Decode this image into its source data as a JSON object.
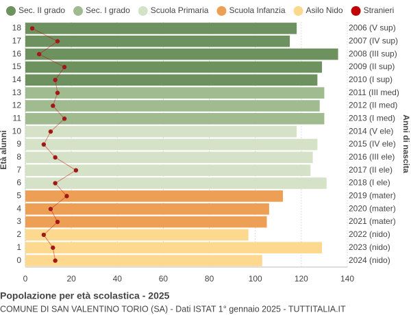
{
  "chart_data": {
    "type": "bar",
    "orientation": "horizontal",
    "title": "Popolazione per età scolastica - 2025",
    "subtitle": "COMUNE DI SAN VALENTINO TORIO (SA) - Dati ISTAT 1° gennaio 2025 - TUTTITALIA.IT",
    "y_label": "Età alunni",
    "y2_label": "Anni di nascita",
    "categories": [
      "18",
      "17",
      "16",
      "15",
      "14",
      "13",
      "12",
      "11",
      "10",
      "9",
      "8",
      "7",
      "6",
      "5",
      "4",
      "3",
      "2",
      "1",
      "0"
    ],
    "right_labels": [
      "2006 (V sup)",
      "2007 (IV sup)",
      "2008 (III sup)",
      "2009 (II sup)",
      "2010 (I sup)",
      "2011 (III med)",
      "2012 (II med)",
      "2013 (I med)",
      "2014 (V ele)",
      "2015 (IV ele)",
      "2016 (III ele)",
      "2017 (II ele)",
      "2018 (I ele)",
      "2019 (mater)",
      "2020 (mater)",
      "2021 (mater)",
      "2022 (nido)",
      "2023 (nido)",
      "2024 (nido)"
    ],
    "xlim": [
      0,
      140
    ],
    "xticks": [
      0,
      20,
      40,
      60,
      80,
      100,
      120,
      140
    ],
    "grid": true,
    "series": [
      {
        "name": "Sec. II grado",
        "color": "#6e9160",
        "values": [
          118,
          115,
          136,
          129,
          127,
          null,
          null,
          null,
          null,
          null,
          null,
          null,
          null,
          null,
          null,
          null,
          null,
          null,
          null
        ]
      },
      {
        "name": "Sec. I grado",
        "color": "#a0bb8f",
        "values": [
          null,
          null,
          null,
          null,
          null,
          130,
          128,
          130,
          null,
          null,
          null,
          null,
          null,
          null,
          null,
          null,
          null,
          null,
          null
        ]
      },
      {
        "name": "Scuola Primaria",
        "color": "#d5e2c7",
        "values": [
          null,
          null,
          null,
          null,
          null,
          null,
          null,
          null,
          118,
          127,
          125,
          124,
          131,
          null,
          null,
          null,
          null,
          null,
          null
        ]
      },
      {
        "name": "Scuola Infanzia",
        "color": "#ee9f56",
        "values": [
          null,
          null,
          null,
          null,
          null,
          null,
          null,
          null,
          null,
          null,
          null,
          null,
          null,
          112,
          106,
          105,
          null,
          null,
          null
        ]
      },
      {
        "name": "Asilo Nido",
        "color": "#fdd98f",
        "values": [
          null,
          null,
          null,
          null,
          null,
          null,
          null,
          null,
          null,
          null,
          null,
          null,
          null,
          null,
          null,
          null,
          97,
          129,
          103
        ]
      },
      {
        "name": "Stranieri",
        "type": "line",
        "color": "#c00000",
        "values": [
          3,
          14,
          6,
          17,
          13,
          14,
          12,
          17,
          11,
          8,
          13,
          22,
          13,
          18,
          11,
          14,
          8,
          12,
          13
        ]
      }
    ]
  }
}
